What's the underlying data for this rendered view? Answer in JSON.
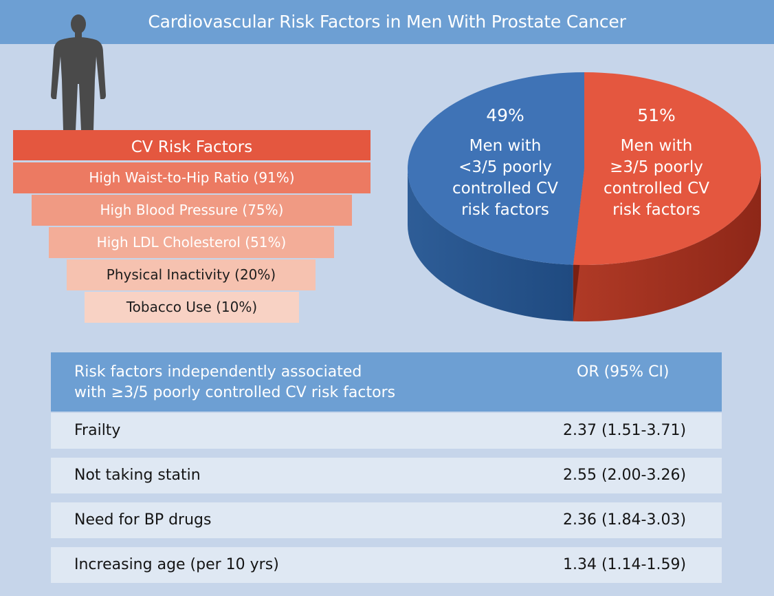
{
  "title": "Cardiovascular Risk Factors in Men With Prostate Cancer",
  "pyramid": {
    "title": "CV Risk Factors",
    "items": [
      "High Waist-to-Hip Ratio (91%)",
      "High Blood Pressure (75%)",
      "High LDL Cholesterol (51%)",
      "Physical Inactivity (20%)",
      "Tobacco Use (10%)"
    ]
  },
  "chart_data": {
    "type": "pie",
    "slices": [
      {
        "value": 49,
        "pct_label": "49%",
        "lines": [
          "Men with",
          "<3/5 poorly",
          "controlled CV",
          "risk factors"
        ],
        "color": "#3f73b6"
      },
      {
        "value": 51,
        "pct_label": "51%",
        "lines": [
          "Men with",
          "≥3/5 poorly",
          "controlled CV",
          "risk factors"
        ],
        "color": "#e4573f"
      }
    ]
  },
  "table": {
    "header_left_line1": "Risk factors independently associated",
    "header_left_line2": "with ≥3/5 poorly controlled CV risk factors",
    "header_right": "OR (95% CI)",
    "rows": [
      {
        "factor": "Frailty",
        "or": "2.37 (1.51-3.71)"
      },
      {
        "factor": "Not taking statin",
        "or": "2.55 (2.00-3.26)"
      },
      {
        "factor": "Need for BP drugs",
        "or": "2.36 (1.84-3.03)"
      },
      {
        "factor": "Increasing age (per 10 yrs)",
        "or": "1.34 (1.14-1.59)"
      }
    ]
  },
  "colors": {
    "background": "#c6d5ea",
    "header": "#6d9fd3",
    "blue_slice": "#3f73b6",
    "red_slice": "#e4573f",
    "row": "#dfe8f3"
  }
}
